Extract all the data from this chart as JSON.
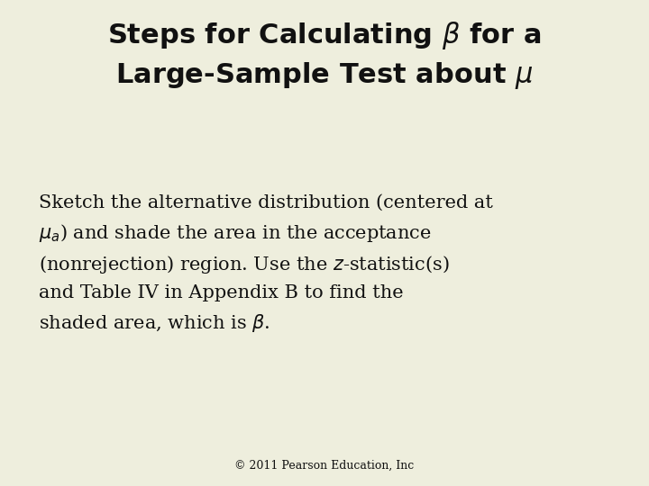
{
  "background_color": "#eeeedd",
  "title_line1": "Steps for Calculating $\\beta$ for a",
  "title_line2": "Large-Sample Test about $\\mu$",
  "title_fontsize": 22,
  "title_fontweight": "bold",
  "body_text_line1": "Sketch the alternative distribution (centered at",
  "body_text_line2": "$\\mu_a$) and shade the area in the acceptance",
  "body_text_line3": "(nonrejection) region. Use the $z$-statistic(s)",
  "body_text_line4": "and Table IV in Appendix B to find the",
  "body_text_line5": "shaded area, which is $\\beta$.",
  "body_fontsize": 15,
  "footer_text": "© 2011 Pearson Education, Inc",
  "footer_fontsize": 9,
  "text_color": "#111111"
}
